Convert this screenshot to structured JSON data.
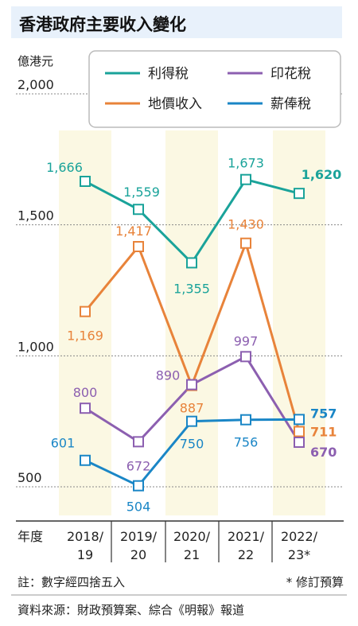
{
  "title": "香港政府主要收入變化",
  "unit": "億港元",
  "x_axis_label": "年度",
  "colors": {
    "profits_tax": "#1aa39a",
    "land_premium": "#e8833a",
    "stamp_duty": "#8c5fb0",
    "salaries_tax": "#1a86c6",
    "title_bg": "#e8f1fb",
    "band": "#fbf8e3"
  },
  "legend": {
    "profits_tax": "利得稅",
    "stamp_duty": "印花稅",
    "land_premium": "地價收入",
    "salaries_tax": "薪俸稅"
  },
  "notes": {
    "rounding": "註：數字經四捨五入",
    "revised": "* 修訂預算",
    "source": "資料來源：財政預算案、綜合《明報》報道"
  },
  "chart_data": {
    "type": "line",
    "title": "香港政府主要收入變化",
    "ylabel": "億港元",
    "xlabel": "年度",
    "ylim": [
      350,
      2000
    ],
    "yticks": [
      "2,000",
      "1,500",
      "1,000",
      "500"
    ],
    "ytick_values": [
      2000,
      1500,
      1000,
      500
    ],
    "categories": [
      {
        "line1": "2018/",
        "line2": "19"
      },
      {
        "line1": "2019/",
        "line2": "20"
      },
      {
        "line1": "2020/",
        "line2": "21"
      },
      {
        "line1": "2021/",
        "line2": "22"
      },
      {
        "line1": "2022/",
        "line2": "23*"
      }
    ],
    "grid": true,
    "legend_position": "top-right",
    "series": [
      {
        "key": "profits_tax",
        "name": "利得稅",
        "color": "#1aa39a",
        "values": [
          1666,
          1559,
          1355,
          1673,
          1620
        ],
        "labels": [
          "1,666",
          "1,559",
          "1,355",
          "1,673",
          "1,620"
        ]
      },
      {
        "key": "land_premium",
        "name": "地價收入",
        "color": "#e8833a",
        "values": [
          1169,
          1417,
          887,
          1430,
          711
        ],
        "labels": [
          "1,169",
          "1,417",
          "887",
          "1,430",
          "711"
        ]
      },
      {
        "key": "stamp_duty",
        "name": "印花稅",
        "color": "#8c5fb0",
        "values": [
          800,
          672,
          890,
          997,
          670
        ],
        "labels": [
          "800",
          "672",
          "890",
          "997",
          "670"
        ]
      },
      {
        "key": "salaries_tax",
        "name": "薪俸稅",
        "color": "#1a86c6",
        "values": [
          601,
          504,
          750,
          756,
          757
        ],
        "labels": [
          "601",
          "504",
          "750",
          "756",
          "757"
        ]
      }
    ]
  }
}
